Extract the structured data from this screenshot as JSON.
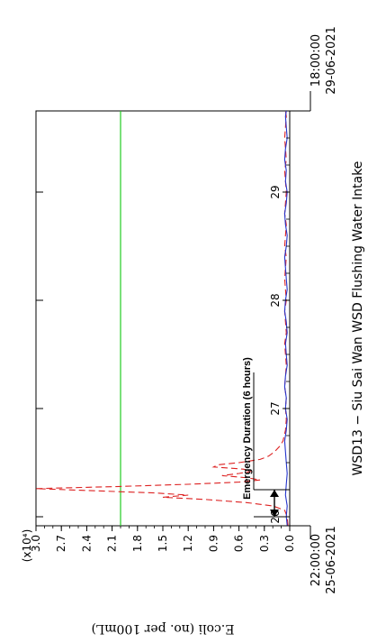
{
  "chart_data": {
    "type": "line",
    "title": "WSD13 − Siu Sai Wan WSD Flushing Water Intake",
    "ylabel": "E.coli (no. per 100mL)",
    "yunit": "(x10⁴)",
    "ylim": [
      0,
      3.0
    ],
    "y_ticks": [
      0.0,
      0.3,
      0.6,
      0.9,
      1.2,
      1.5,
      1.8,
      2.1,
      2.4,
      2.7,
      3.0
    ],
    "y_tick_labels": [
      "0.0",
      "0.3",
      "0.6",
      "0.9",
      "1.2",
      "1.5",
      "1.8",
      "2.1",
      "2.4",
      "2.7",
      "3.0"
    ],
    "xlim": [
      25.9167,
      29.75
    ],
    "x_ticks": [
      26,
      27,
      28,
      29
    ],
    "x_tick_labels": [
      "26",
      "27",
      "28",
      "29"
    ],
    "start_time": "22:00:00",
    "start_date": "25-06-2021",
    "end_time": "18:00:00",
    "end_date": "29-06-2021",
    "grid": false,
    "threshold": {
      "value": 2.0,
      "color": "#22cc22"
    },
    "emergency": {
      "label": "Emergency Duration (6 hours)",
      "start": 26.0,
      "end": 26.25
    },
    "series": [
      {
        "style": "dashed",
        "color": "#dd2222",
        "x": [
          25.92,
          26.0,
          26.06,
          26.1,
          26.13,
          26.16,
          26.18,
          26.2,
          26.22,
          26.24,
          26.26,
          26.28,
          26.3,
          26.32,
          26.34,
          26.36,
          26.38,
          26.4,
          26.42,
          26.44,
          26.46,
          26.48,
          26.5,
          26.53,
          26.56,
          26.6,
          26.65,
          26.7,
          26.8,
          26.9,
          27.0,
          27.1,
          27.2,
          27.3,
          27.4,
          27.5,
          27.6,
          27.7,
          27.8,
          27.9,
          28.0,
          28.1,
          28.2,
          28.3,
          28.4,
          28.5,
          28.6,
          28.7,
          28.8,
          28.9,
          29.0,
          29.1,
          29.2,
          29.3,
          29.4,
          29.5,
          29.6,
          29.7,
          29.75
        ],
        "values": [
          0.02,
          0.03,
          0.06,
          0.2,
          0.5,
          1.0,
          1.5,
          1.2,
          1.6,
          2.3,
          3.0,
          2.0,
          1.2,
          0.6,
          0.35,
          0.5,
          0.8,
          0.6,
          0.45,
          0.55,
          0.9,
          0.85,
          0.6,
          0.35,
          0.25,
          0.18,
          0.12,
          0.08,
          0.05,
          0.04,
          0.05,
          0.04,
          0.06,
          0.05,
          0.04,
          0.05,
          0.06,
          0.04,
          0.05,
          0.06,
          0.04,
          0.05,
          0.06,
          0.05,
          0.04,
          0.06,
          0.05,
          0.04,
          0.06,
          0.05,
          0.04,
          0.05,
          0.06,
          0.04,
          0.05,
          0.06,
          0.05,
          0.04,
          0.05
        ]
      },
      {
        "style": "solid",
        "color": "#2233cc",
        "x": [
          25.92,
          26.0,
          26.1,
          26.2,
          26.3,
          26.4,
          26.5,
          26.6,
          26.7,
          26.8,
          26.9,
          27.0,
          27.1,
          27.2,
          27.3,
          27.4,
          27.5,
          27.6,
          27.7,
          27.8,
          27.9,
          28.0,
          28.1,
          28.2,
          28.3,
          28.4,
          28.5,
          28.6,
          28.7,
          28.8,
          28.9,
          29.0,
          29.1,
          29.2,
          29.3,
          29.4,
          29.5,
          29.6,
          29.7,
          29.75
        ],
        "values": [
          0.03,
          0.04,
          0.03,
          0.05,
          0.04,
          0.03,
          0.04,
          0.05,
          0.06,
          0.04,
          0.03,
          0.05,
          0.04,
          0.06,
          0.05,
          0.03,
          0.04,
          0.05,
          0.03,
          0.04,
          0.06,
          0.05,
          0.03,
          0.04,
          0.05,
          0.06,
          0.04,
          0.03,
          0.05,
          0.06,
          0.04,
          0.03,
          0.05,
          0.04,
          0.06,
          0.05,
          0.03,
          0.04,
          0.05,
          0.04
        ]
      }
    ]
  }
}
